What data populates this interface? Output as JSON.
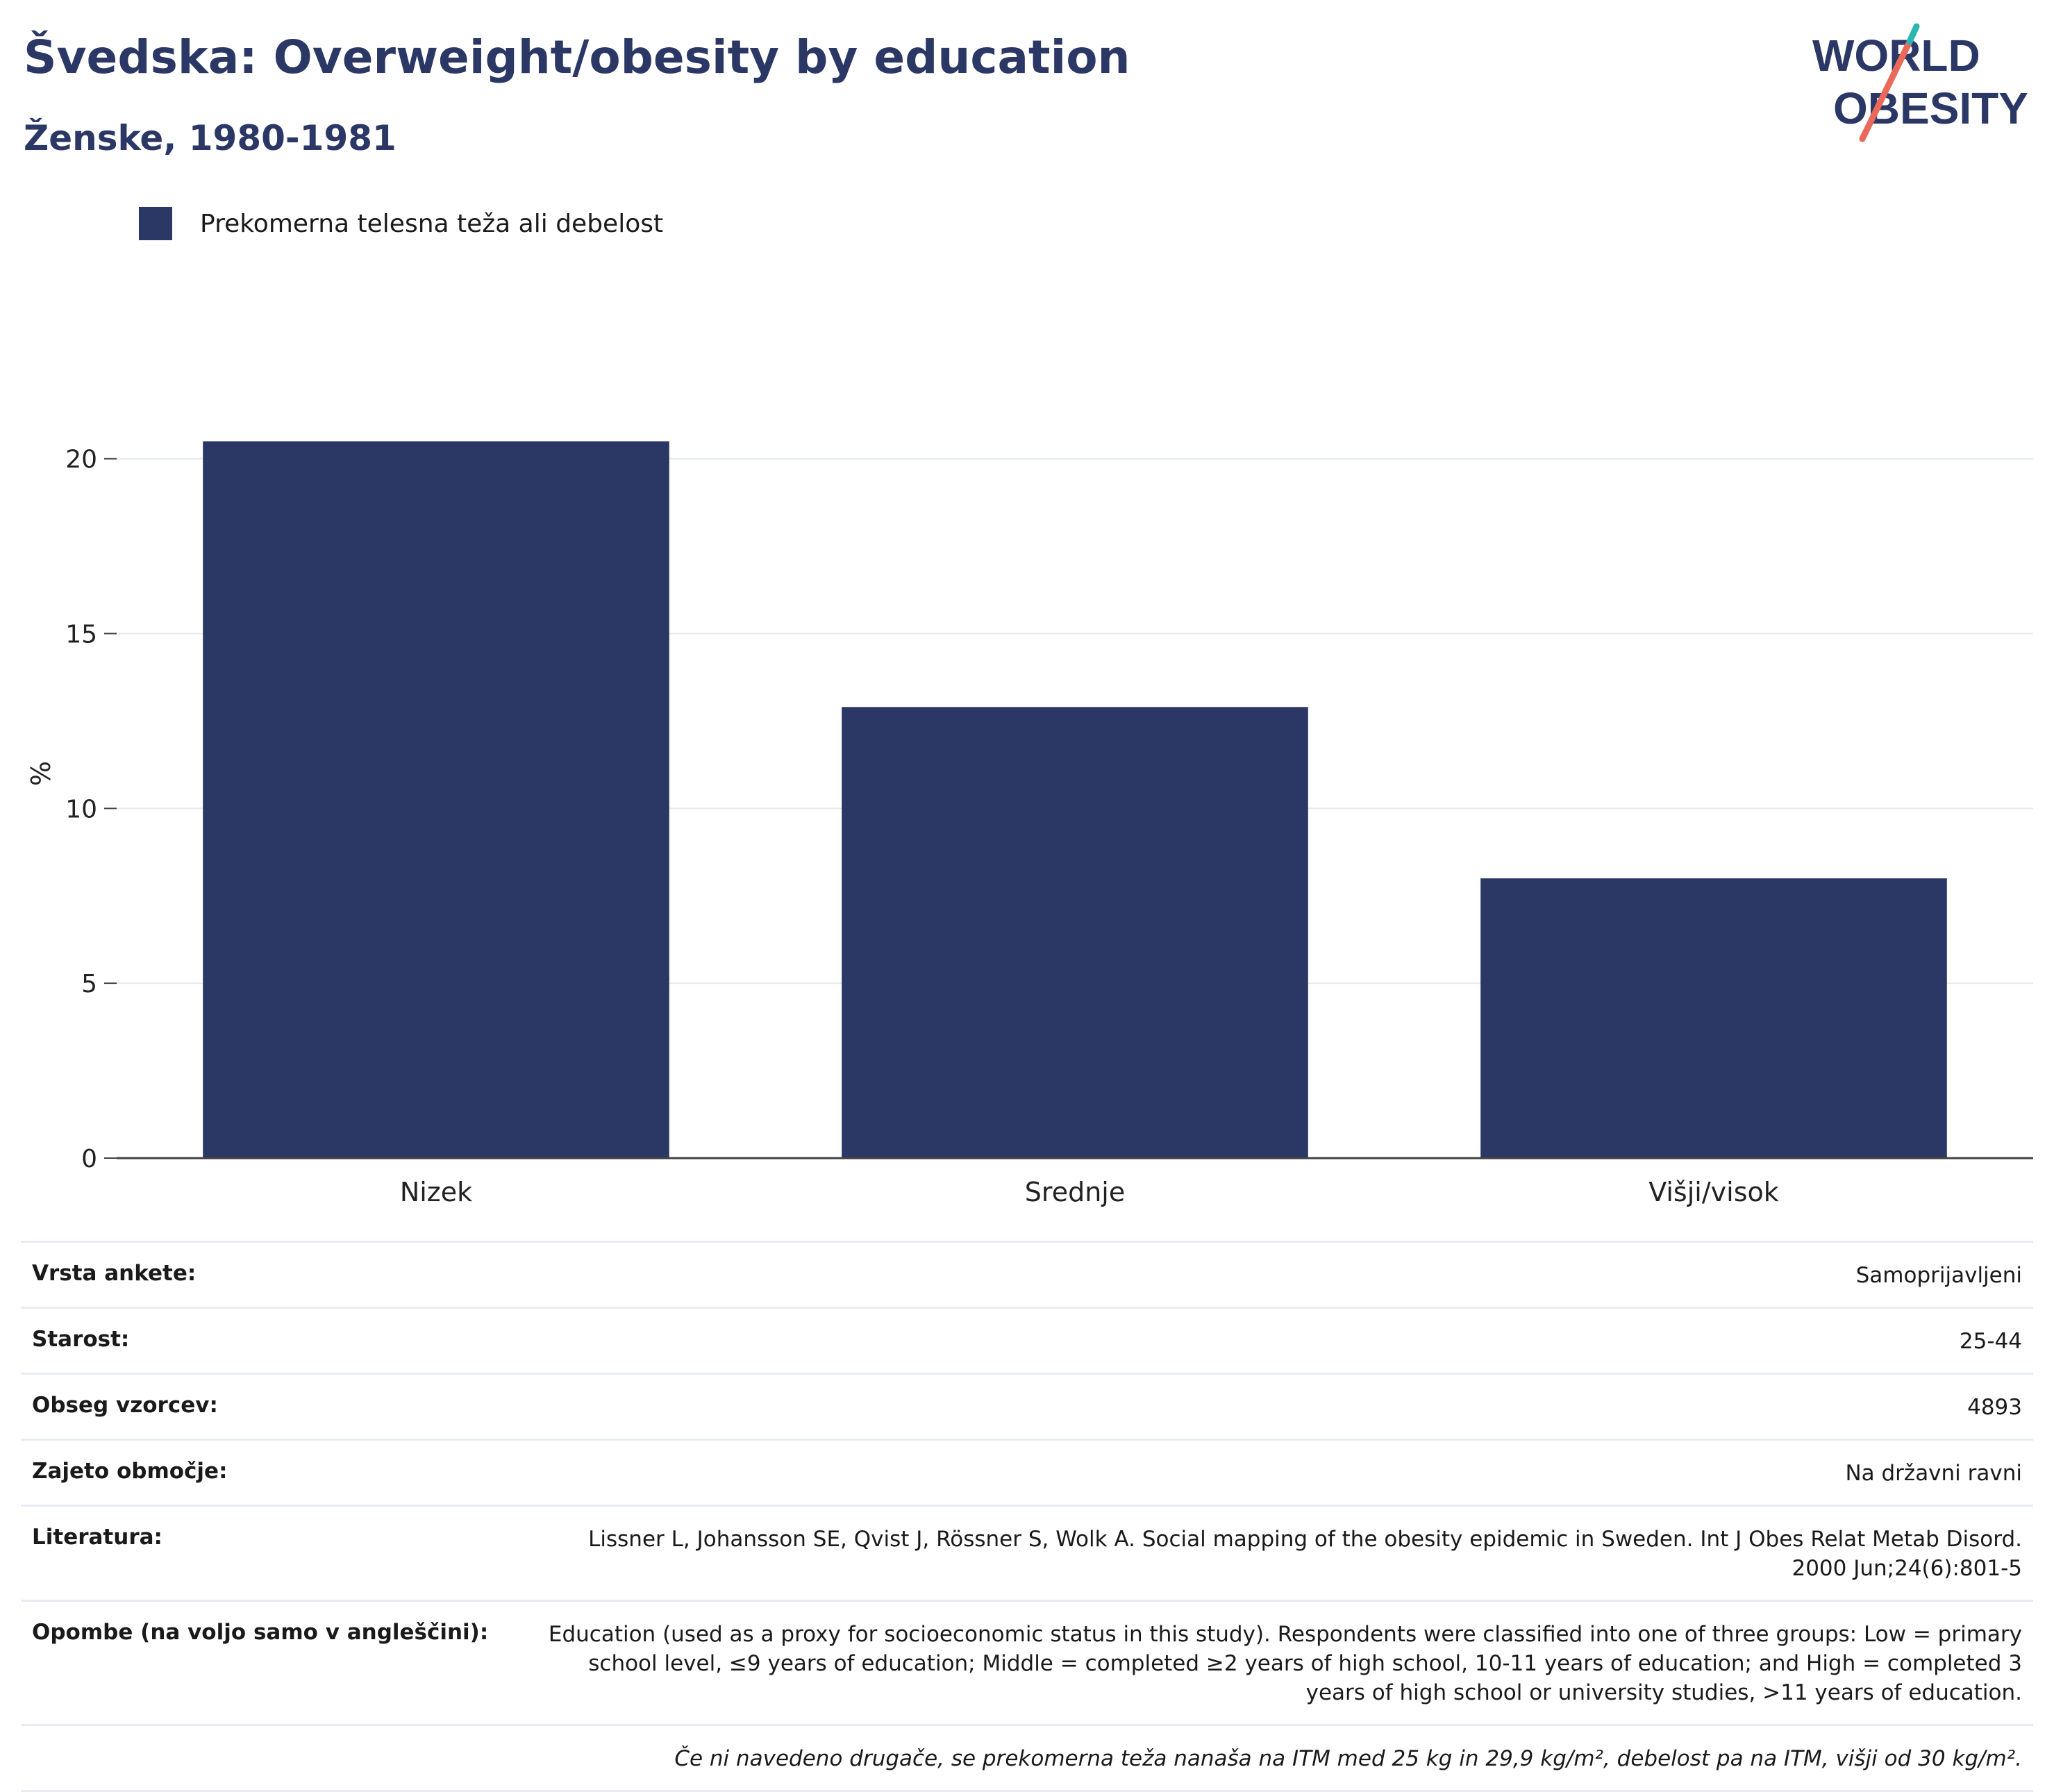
{
  "header": {
    "title": "Švedska: Overweight/obesity by education",
    "subtitle": "Ženske, 1980-1981"
  },
  "logo": {
    "line1": "WORLD",
    "line2": "OBESITY"
  },
  "legend": {
    "label": "Prekomerna telesna teža ali debelost",
    "color": "#2b3765"
  },
  "chart_data": {
    "type": "bar",
    "categories": [
      "Nizek",
      "Srednje",
      "Višji/visok"
    ],
    "series": [
      {
        "name": "Prekomerna telesna teža ali debelost",
        "values": [
          20.5,
          12.9,
          8.0
        ],
        "color": "#2b3765"
      }
    ],
    "ylabel": "%",
    "ylim": [
      0,
      22
    ],
    "yticks": [
      0,
      5,
      10,
      15,
      20
    ],
    "grid": true
  },
  "info": {
    "rows": [
      {
        "key": "Vrsta ankete:",
        "value": "Samoprijavljeni"
      },
      {
        "key": "Starost:",
        "value": "25-44"
      },
      {
        "key": "Obseg vzorcev:",
        "value": "4893"
      },
      {
        "key": "Zajeto območje:",
        "value": "Na državni ravni"
      },
      {
        "key": "Literatura:",
        "value": "Lissner L, Johansson SE, Qvist J, Rössner S, Wolk A. Social mapping of the obesity epidemic in Sweden. Int J Obes Relat Metab Disord. 2000 Jun;24(6):801-5"
      },
      {
        "key": "Opombe (na voljo samo v angleščini):",
        "value": "Education (used as a proxy for socioeconomic status in this study). Respondents were classified into one of three groups: Low = primary school level, ≤9 years of education; Middle = completed ≥2 years of high school, 10-11 years of education; and High = completed 3 years of high school or university studies, >11 years of education."
      }
    ],
    "footnote": "Če ni navedeno drugače, se prekomerna teža nanaša na ITM med 25 kg in 29,9 kg/m², debelost pa na ITM, višji od 30 kg/m²."
  }
}
